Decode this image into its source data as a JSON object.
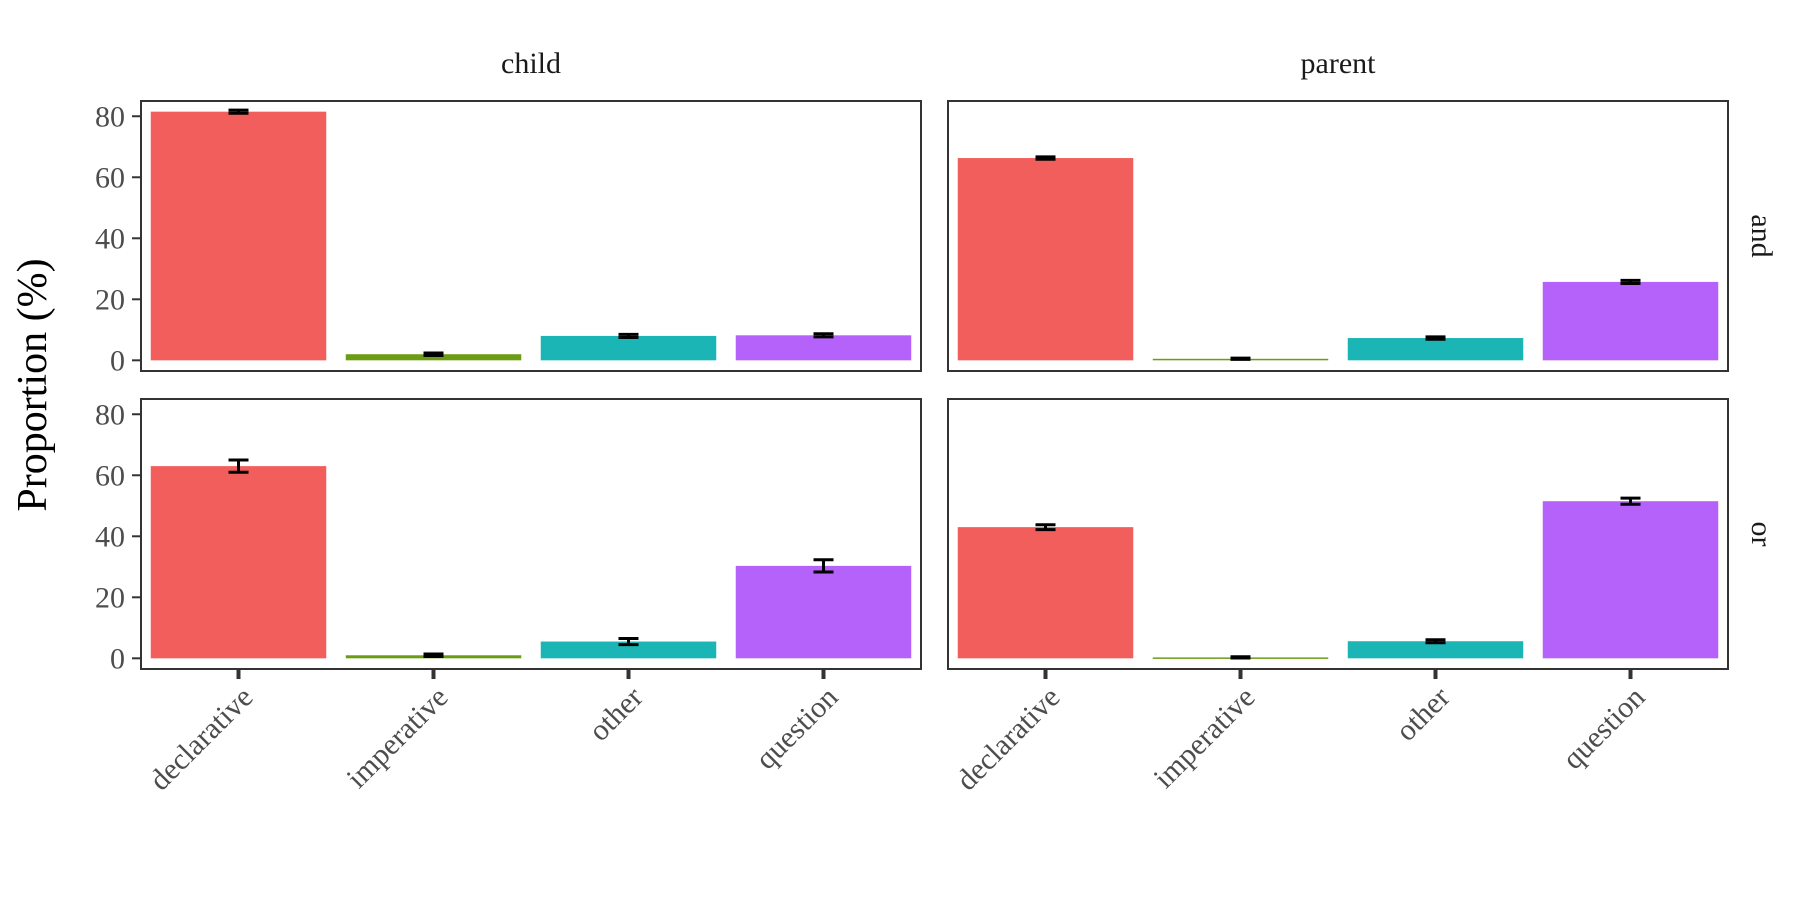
{
  "chart_data": {
    "type": "bar",
    "ylabel": "Proportion (%)",
    "xlabel": "",
    "categories": [
      "declarative",
      "imperative",
      "other",
      "question"
    ],
    "colors": [
      "#F25E5B",
      "#6B9D14",
      "#1CB5B5",
      "#B562FA"
    ],
    "ylim": [
      -3.5,
      85
    ],
    "yticks": [
      0,
      20,
      40,
      60,
      80
    ],
    "grid": false,
    "legend": "none",
    "facet_columns": [
      "child",
      "parent"
    ],
    "facet_rows": [
      "and",
      "or"
    ],
    "panels": [
      {
        "column": "child",
        "row": "and",
        "values": [
          81.5,
          2.0,
          8.0,
          8.2
        ],
        "errors": [
          0.5,
          0.4,
          0.5,
          0.5
        ]
      },
      {
        "column": "parent",
        "row": "and",
        "values": [
          66.3,
          0.5,
          7.3,
          25.7
        ],
        "errors": [
          0.4,
          0.2,
          0.4,
          0.5
        ]
      },
      {
        "column": "child",
        "row": "or",
        "values": [
          63.0,
          1.0,
          5.5,
          30.3
        ],
        "errors": [
          2.0,
          0.4,
          1.0,
          2.0
        ]
      },
      {
        "column": "parent",
        "row": "or",
        "values": [
          43.0,
          0.3,
          5.6,
          51.5
        ],
        "errors": [
          0.8,
          0.2,
          0.5,
          1.0
        ]
      }
    ]
  }
}
